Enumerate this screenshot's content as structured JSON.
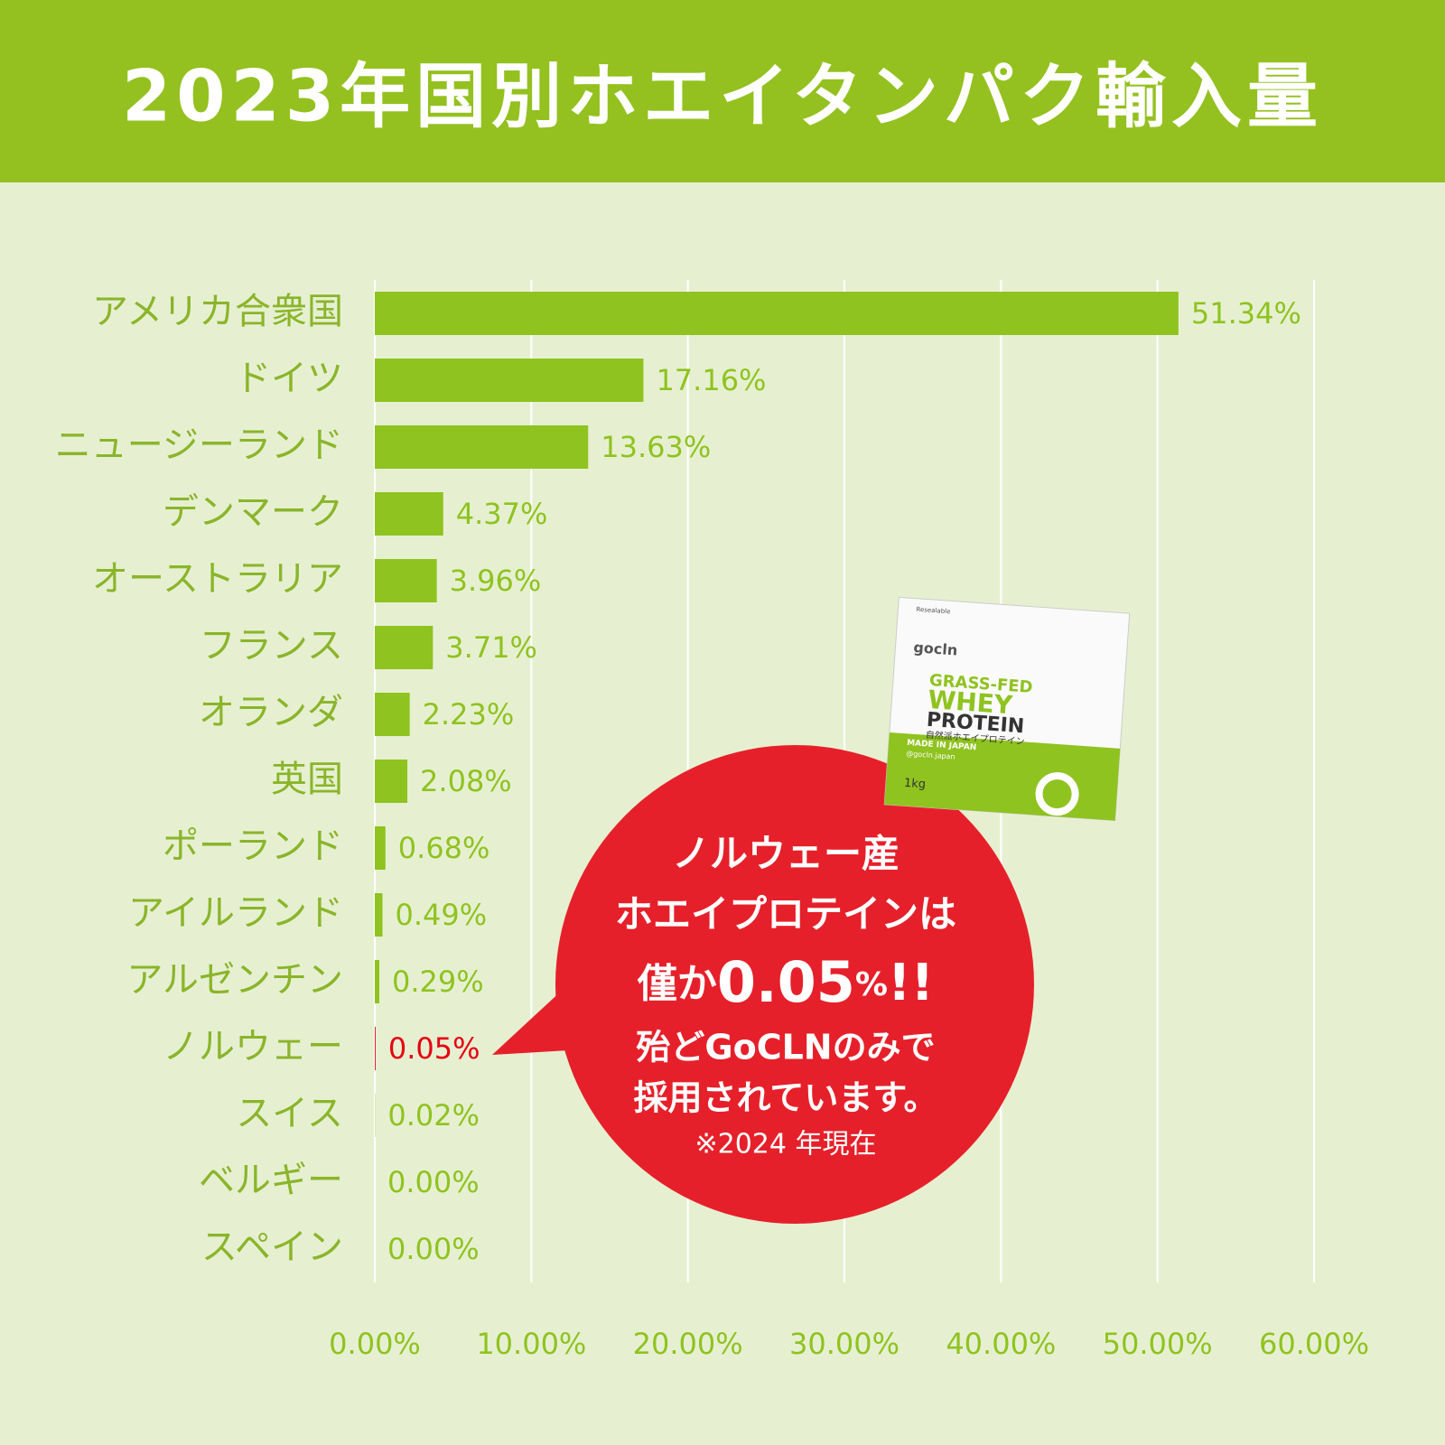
{
  "chart_data": {
    "type": "barh",
    "title": "2023年国別ホエイタンパク輸入量",
    "categories": [
      "アメリカ合衆国",
      "ドイツ",
      "ニュージーランド",
      "デンマーク",
      "オーストラリア",
      "フランス",
      "オランダ",
      "英国",
      "ポーランド",
      "アイルランド",
      "アルゼンチン",
      "ノルウェー",
      "スイス",
      "ベルギー",
      "スペイン"
    ],
    "values": [
      51.34,
      17.16,
      13.63,
      4.37,
      3.96,
      3.71,
      2.23,
      2.08,
      0.68,
      0.49,
      0.29,
      0.05,
      0.02,
      0.0,
      0.0
    ],
    "value_labels": [
      "51.34%",
      "17.16%",
      "13.63%",
      "4.37%",
      "3.96%",
      "3.71%",
      "2.23%",
      "2.08%",
      "0.68%",
      "0.49%",
      "0.29%",
      "0.05%",
      "0.02%",
      "0.00%",
      "0.00%"
    ],
    "colors": [
      "#8fc31f",
      "#8fc31f",
      "#8fc31f",
      "#8fc31f",
      "#8fc31f",
      "#8fc31f",
      "#8fc31f",
      "#8fc31f",
      "#8fc31f",
      "#8fc31f",
      "#8fc31f",
      "#e60012",
      "#8fc31f",
      "#8fc31f",
      "#8fc31f"
    ],
    "xlim": [
      0,
      60
    ],
    "xticks": [
      {
        "value": 0,
        "label": "0.00%"
      },
      {
        "value": 10,
        "label": "10.00%"
      },
      {
        "value": 20,
        "label": "20.00%"
      },
      {
        "value": 30,
        "label": "30.00%"
      },
      {
        "value": 40,
        "label": "40.00%"
      },
      {
        "value": 50,
        "label": "50.00%"
      },
      {
        "value": 60,
        "label": "60.00%"
      }
    ],
    "grid": true,
    "callout": {
      "line1": "ノルウェー産",
      "line2": "ホエイプロテインは",
      "emph": [
        "僅か",
        "0.05",
        "%",
        "!!"
      ],
      "line4": "殆どGoCLNのみで",
      "line5": "採用されています。",
      "note": "※2024 年現在"
    },
    "product": {
      "reseal": "Resealable",
      "brand": "gocln",
      "t1": "GRASS-FED",
      "t2": "WHEY",
      "t3": "PROTEIN",
      "t4": "自然派ホエイプロテイン",
      "t5": "MADE IN JAPAN",
      "t6": "@gocln.japan",
      "size": "1kg"
    }
  }
}
